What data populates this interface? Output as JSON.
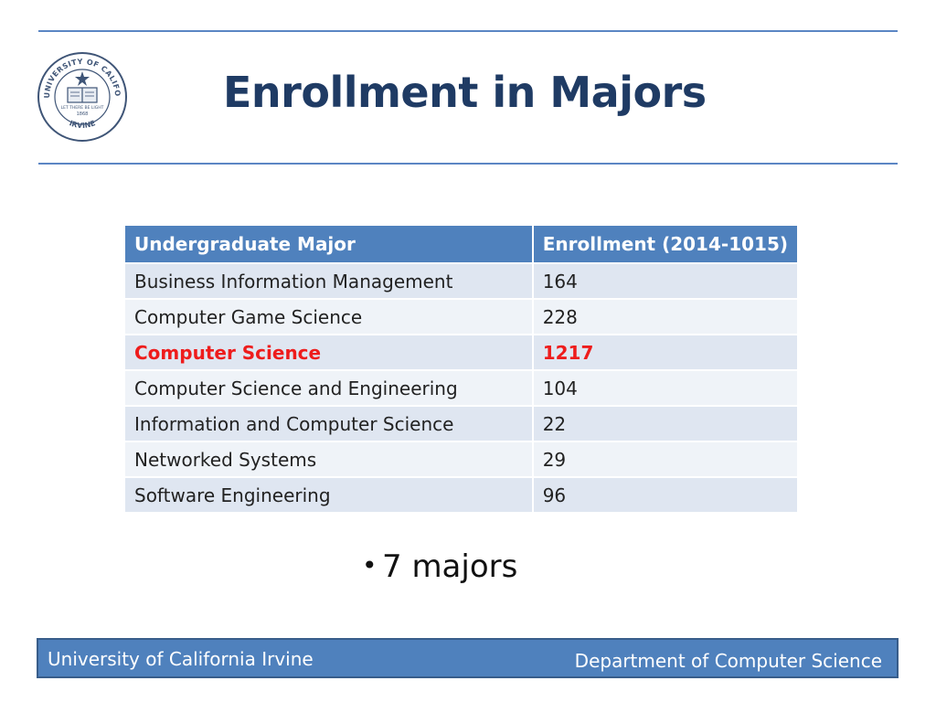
{
  "slide": {
    "title": "Enrollment in Majors",
    "seal": {
      "icon": "university-seal-icon",
      "top_text": "THE UNIVERSITY OF CALIFORNIA",
      "bottom_text": "IRVINE",
      "motto": "LET THERE BE LIGHT",
      "year": "1868"
    },
    "table": {
      "headers": [
        "Undergraduate Major",
        "Enrollment (2014-1015)"
      ],
      "rows": [
        {
          "major": "Business Information Management",
          "enrollment": "164"
        },
        {
          "major": "Computer Game Science",
          "enrollment": "228"
        },
        {
          "major": "Computer Science",
          "enrollment": "1217"
        },
        {
          "major": "Computer Science and Engineering",
          "enrollment": "104"
        },
        {
          "major": "Information and Computer Science",
          "enrollment": "22"
        },
        {
          "major": "Networked Systems",
          "enrollment": "29"
        },
        {
          "major": "Software Engineering",
          "enrollment": "96"
        }
      ]
    },
    "bullet": {
      "symbol": "•",
      "text": "7 majors"
    },
    "footer": {
      "left": "University of California Irvine",
      "right": "Department of Computer Science"
    },
    "colors": {
      "accent_blue": "#4f81bd",
      "title_navy": "#1f3b64",
      "highlight_red": "#ee1c1c"
    }
  }
}
